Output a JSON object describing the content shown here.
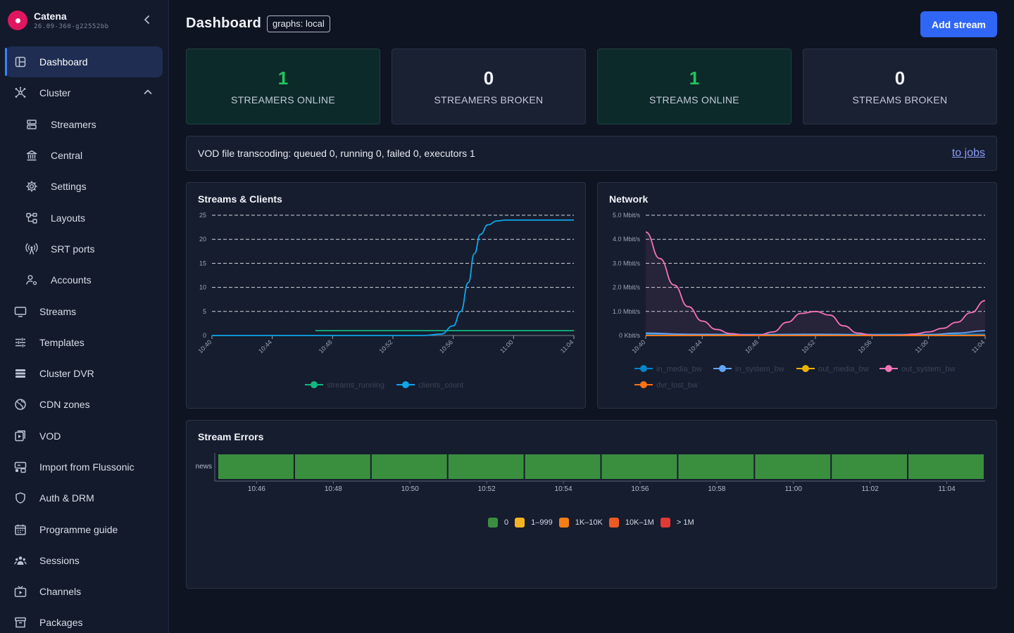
{
  "brand": {
    "name": "Catena",
    "version": "26.09-360-g22552bb",
    "collapse_icon": "chevron-left-icon"
  },
  "sidebar": {
    "items": [
      {
        "label": "Dashboard",
        "icon": "dashboard-icon",
        "active": true,
        "sub": false
      },
      {
        "label": "Cluster",
        "icon": "cluster-icon",
        "active": false,
        "sub": false,
        "expanded": true
      },
      {
        "label": "Streamers",
        "icon": "server-icon",
        "active": false,
        "sub": true
      },
      {
        "label": "Central",
        "icon": "bank-icon",
        "active": false,
        "sub": true
      },
      {
        "label": "Settings",
        "icon": "gear-icon",
        "active": false,
        "sub": true
      },
      {
        "label": "Layouts",
        "icon": "layouts-icon",
        "active": false,
        "sub": true
      },
      {
        "label": "SRT ports",
        "icon": "antenna-icon",
        "active": false,
        "sub": true
      },
      {
        "label": "Accounts",
        "icon": "accounts-icon",
        "active": false,
        "sub": true
      },
      {
        "label": "Streams",
        "icon": "monitor-icon",
        "active": false,
        "sub": false
      },
      {
        "label": "Templates",
        "icon": "sliders-icon",
        "active": false,
        "sub": false
      },
      {
        "label": "Cluster DVR",
        "icon": "list-icon",
        "active": false,
        "sub": false
      },
      {
        "label": "CDN zones",
        "icon": "globe-icon",
        "active": false,
        "sub": false
      },
      {
        "label": "VOD",
        "icon": "video-file-icon",
        "active": false,
        "sub": false
      },
      {
        "label": "Import from Flussonic",
        "icon": "import-icon",
        "active": false,
        "sub": false
      },
      {
        "label": "Auth & DRM",
        "icon": "shield-icon",
        "active": false,
        "sub": false
      },
      {
        "label": "Programme guide",
        "icon": "calendar-icon",
        "active": false,
        "sub": false
      },
      {
        "label": "Sessions",
        "icon": "users-icon",
        "active": false,
        "sub": false
      },
      {
        "label": "Channels",
        "icon": "tv-icon",
        "active": false,
        "sub": false
      },
      {
        "label": "Packages",
        "icon": "archive-icon",
        "active": false,
        "sub": false
      }
    ]
  },
  "header": {
    "title": "Dashboard",
    "graphs_badge": "graphs: local",
    "add_stream_label": "Add stream"
  },
  "stats": [
    {
      "value": "1",
      "label": "STREAMERS ONLINE",
      "ok": true
    },
    {
      "value": "0",
      "label": "STREAMERS BROKEN",
      "ok": false
    },
    {
      "value": "1",
      "label": "STREAMS ONLINE",
      "ok": true
    },
    {
      "value": "0",
      "label": "STREAMS BROKEN",
      "ok": false
    }
  ],
  "vod": {
    "text": "VOD file transcoding: queued 0, running 0, failed 0, executors 1",
    "link_label": "to jobs"
  },
  "colors": {
    "accent": "#2f66f5",
    "ok_green": "#22c55e",
    "streams_running": "#10b981",
    "clients_count": "#0ea5e9",
    "in_media_bw": "#0284c7",
    "in_system_bw": "#60a5fa",
    "out_media_bw": "#eab308",
    "out_system_bw": "#f472b6",
    "dvr_lost_bw": "#f97316",
    "errors_ok": "#3a8f3f"
  },
  "chart_data": [
    {
      "type": "line",
      "title": "Streams & Clients",
      "x": [
        "10:40",
        "10:44",
        "10:48",
        "10:52",
        "10:56",
        "11:00",
        "11:04"
      ],
      "ylim": [
        0,
        25
      ],
      "yticks": [
        "0",
        "5",
        "10",
        "15",
        "20",
        "25"
      ],
      "grid": true,
      "legend": "bottom",
      "series": [
        {
          "name": "streams_running",
          "points": [
            [
              6.86,
              1
            ],
            [
              9.0,
              1
            ],
            [
              12.0,
              1
            ],
            [
              15.0,
              1
            ],
            [
              18.0,
              1
            ],
            [
              21.0,
              1
            ],
            [
              24.0,
              1
            ]
          ]
        },
        {
          "name": "clients_count",
          "points": [
            [
              0,
              0
            ],
            [
              4,
              0
            ],
            [
              8,
              0
            ],
            [
              12,
              0
            ],
            [
              14,
              0
            ],
            [
              15.2,
              0.3
            ],
            [
              16.0,
              2
            ],
            [
              16.5,
              5
            ],
            [
              17.0,
              11
            ],
            [
              17.4,
              17
            ],
            [
              17.8,
              21
            ],
            [
              18.3,
              23
            ],
            [
              18.9,
              23.8
            ],
            [
              19.5,
              24
            ],
            [
              22,
              24
            ],
            [
              24,
              24
            ]
          ]
        }
      ]
    },
    {
      "type": "area",
      "title": "Network",
      "x": [
        "10:40",
        "10:44",
        "10:48",
        "10:52",
        "10:56",
        "11:00",
        "11:04"
      ],
      "ylim": [
        0,
        5
      ],
      "yticks": [
        "0 Kbit/s",
        "1.0 Mbit/s",
        "2.0 Mbit/s",
        "3.0 Mbit/s",
        "4.0 Mbit/s",
        "5.0 Mbit/s"
      ],
      "grid": true,
      "legend": "bottom",
      "series": [
        {
          "name": "in_media_bw",
          "points": [
            [
              0,
              0.05
            ],
            [
              24,
              0.05
            ]
          ]
        },
        {
          "name": "in_system_bw",
          "points": [
            [
              0,
              0.1
            ],
            [
              3,
              0.05
            ],
            [
              8,
              0.03
            ],
            [
              12,
              0.05
            ],
            [
              16,
              0.02
            ],
            [
              20,
              0.03
            ],
            [
              22,
              0.1
            ],
            [
              24,
              0.2
            ]
          ]
        },
        {
          "name": "out_media_bw",
          "points": [
            [
              0,
              0
            ],
            [
              24,
              0
            ]
          ]
        },
        {
          "name": "out_system_bw",
          "points": [
            [
              0,
              4.3
            ],
            [
              1,
              3.2
            ],
            [
              2,
              2.1
            ],
            [
              3,
              1.2
            ],
            [
              4,
              0.6
            ],
            [
              5,
              0.25
            ],
            [
              6,
              0.08
            ],
            [
              7,
              0.02
            ],
            [
              8,
              0.02
            ],
            [
              9,
              0.15
            ],
            [
              10,
              0.55
            ],
            [
              11,
              0.92
            ],
            [
              12,
              1.0
            ],
            [
              13,
              0.85
            ],
            [
              14,
              0.4
            ],
            [
              15,
              0.1
            ],
            [
              16,
              0.02
            ],
            [
              17,
              0.01
            ],
            [
              18,
              0.02
            ],
            [
              19,
              0.06
            ],
            [
              20,
              0.15
            ],
            [
              21,
              0.3
            ],
            [
              22,
              0.55
            ],
            [
              23,
              0.95
            ],
            [
              24,
              1.45
            ]
          ]
        },
        {
          "name": "dvr_lost_bw",
          "points": [
            [
              0,
              0
            ],
            [
              24,
              0
            ]
          ]
        }
      ]
    },
    {
      "type": "heatmap",
      "title": "Stream Errors",
      "rows": [
        "news"
      ],
      "x": [
        "10:46",
        "10:48",
        "10:50",
        "10:52",
        "10:54",
        "10:56",
        "10:58",
        "11:00",
        "11:02",
        "11:04"
      ],
      "values": [
        [
          0,
          0,
          0,
          0,
          0,
          0,
          0,
          0,
          0,
          0
        ]
      ],
      "legend": [
        {
          "label": "0",
          "color": "#3a8f3f"
        },
        {
          "label": "1–999",
          "color": "#f5b324"
        },
        {
          "label": "1K–10K",
          "color": "#f47d15"
        },
        {
          "label": "10K–1M",
          "color": "#ef5a24"
        },
        {
          "label": "> 1M",
          "color": "#e53935"
        }
      ]
    }
  ]
}
